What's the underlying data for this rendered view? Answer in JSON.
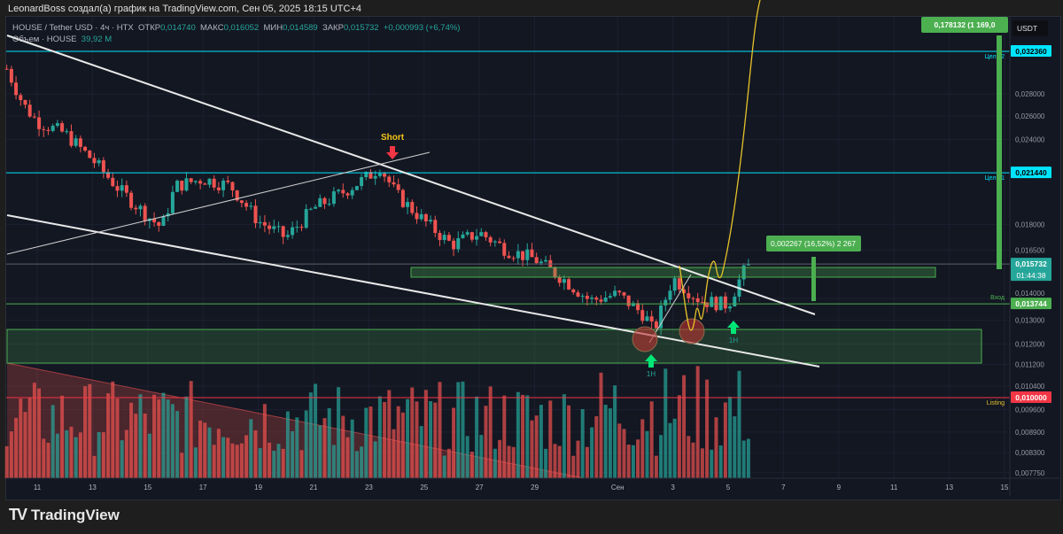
{
  "credit": "LeonardBoss создал(а) график на TradingView.com, Сен 05, 2025 18:15 UTC+4",
  "legend": {
    "symbol": "HOUSE / Tether USD · 4ч · HTX",
    "open_label": "ОТКР",
    "open": "0,014740",
    "high_label": "МАКС",
    "high": "0,016052",
    "low_label": "МИН",
    "low": "0,014589",
    "close_label": "ЗАКР",
    "close": "0,015732",
    "change": "+0,000993 (+6,74%)",
    "volume_label": "Объем · HOUSE",
    "volume": "39,92 M"
  },
  "currency": "USDT",
  "footer_brand": "TradingView",
  "colors": {
    "up": "#26a69a",
    "down": "#ef5350",
    "cyan": "#00e5ff",
    "green": "#4caf50",
    "red": "#f23645",
    "yellow": "#e6c229"
  },
  "chart_data": {
    "type": "candlestick",
    "scale": "log",
    "ylim": [
      0.0074,
      0.036
    ],
    "x_ticks": [
      "11",
      "13",
      "15",
      "17",
      "19",
      "21",
      "23",
      "25",
      "27",
      "29",
      "Сен",
      "3",
      "5",
      "7",
      "9",
      "11",
      "13",
      "15"
    ],
    "x_tick_days": [
      0,
      2,
      4,
      6,
      8,
      10,
      12,
      14,
      16,
      18,
      21,
      23,
      25,
      27,
      29,
      31,
      33,
      35
    ],
    "y_ticks": [
      "0,028000",
      "0,026000",
      "0,024000",
      "0,018000",
      "0,016500",
      "0,014000",
      "0,013000",
      "0,012000",
      "0,011200",
      "0,010400",
      "0,009600",
      "0,008900",
      "0,008300",
      "0,007750"
    ],
    "y_tick_values": [
      0.028,
      0.026,
      0.024,
      0.018,
      0.0165,
      0.014,
      0.013,
      0.012,
      0.0112,
      0.0104,
      0.0096,
      0.0089,
      0.0083,
      0.00775
    ],
    "close_keypoints_day_price": [
      [
        -1.1,
        0.0305
      ],
      [
        -0.5,
        0.027
      ],
      [
        0,
        0.0255
      ],
      [
        1,
        0.0245
      ],
      [
        2,
        0.0224
      ],
      [
        3,
        0.0202
      ],
      [
        4,
        0.0185
      ],
      [
        4.5,
        0.0178
      ],
      [
        5,
        0.0205
      ],
      [
        6,
        0.021
      ],
      [
        7,
        0.0205
      ],
      [
        8,
        0.0182
      ],
      [
        9,
        0.0172
      ],
      [
        10,
        0.019
      ],
      [
        11,
        0.02
      ],
      [
        12,
        0.0212
      ],
      [
        12.4,
        0.0219
      ],
      [
        13,
        0.0199
      ],
      [
        14,
        0.0182
      ],
      [
        15,
        0.0168
      ],
      [
        16,
        0.0175
      ],
      [
        17,
        0.0165
      ],
      [
        18,
        0.016
      ],
      [
        19,
        0.015
      ],
      [
        20,
        0.0139
      ],
      [
        21,
        0.0142
      ],
      [
        22,
        0.0132
      ],
      [
        22.3,
        0.0125
      ],
      [
        23,
        0.015
      ],
      [
        24,
        0.0139
      ],
      [
        25,
        0.0137
      ],
      [
        25.5,
        0.0152
      ],
      [
        25.8,
        0.015732
      ]
    ],
    "horizontal_levels": [
      {
        "label": "Цель 2",
        "value": 0.03236,
        "tag": "0,032360",
        "color": "cyan"
      },
      {
        "label": "Цель 1",
        "value": 0.02144,
        "tag": "0,021440",
        "color": "cyan"
      },
      {
        "label": "",
        "value": 0.015732,
        "tag": "0,015732",
        "sub": "01:44:38",
        "color": "up"
      },
      {
        "label": "Вход",
        "value": 0.013744,
        "tag": "0,013744",
        "color": "green"
      },
      {
        "label": "Listing",
        "value": 0.01,
        "tag": "0,010000",
        "color": "red"
      }
    ],
    "annotations": {
      "short": "Short",
      "arrow_labels": [
        "1H",
        "1H"
      ],
      "measure_small": "0,002267 (16,52%) 2 267",
      "measure_big": "0,178132 (1 169,0"
    }
  }
}
